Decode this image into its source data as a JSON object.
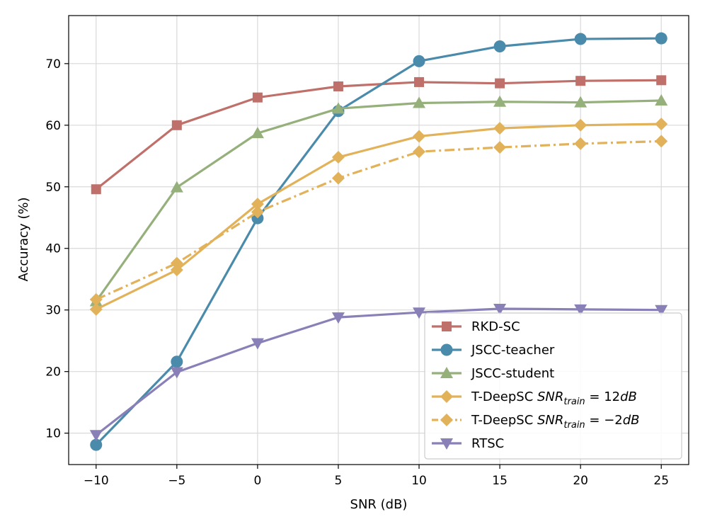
{
  "chart_data": {
    "type": "line",
    "title": "",
    "xlabel": "SNR (dB)",
    "ylabel": "Accuracy (%)",
    "x": [
      -10,
      -5,
      0,
      5,
      10,
      15,
      20,
      25
    ],
    "xlim": [
      -11.7,
      26.7
    ],
    "ylim": [
      4.9,
      77.8
    ],
    "xticks": [
      -10,
      -5,
      0,
      5,
      10,
      15,
      20,
      25
    ],
    "xtick_labels": [
      "−10",
      "−5",
      "0",
      "5",
      "10",
      "15",
      "20",
      "25"
    ],
    "yticks": [
      10,
      20,
      30,
      40,
      50,
      60,
      70
    ],
    "ytick_labels": [
      "10",
      "20",
      "30",
      "40",
      "50",
      "60",
      "70"
    ],
    "grid": true,
    "legend_position": "lower-right",
    "series": [
      {
        "id": "rkd-sc",
        "name": "RKD-SC",
        "color": "#c0706a",
        "marker": "square",
        "dash": "solid",
        "legend": {
          "pre": "RKD-SC"
        },
        "values": [
          49.6,
          60.0,
          64.5,
          66.3,
          67.0,
          66.8,
          67.2,
          67.3
        ]
      },
      {
        "id": "jscc-teacher",
        "name": "JSCC-teacher",
        "color": "#4a8aaa",
        "marker": "circle",
        "dash": "solid",
        "legend": {
          "pre": "JSCC-teacher"
        },
        "values": [
          8.1,
          21.6,
          44.9,
          62.3,
          70.4,
          72.8,
          74.0,
          74.1
        ]
      },
      {
        "id": "jscc-student",
        "name": "JSCC-student",
        "color": "#95b07a",
        "marker": "triangle-up",
        "dash": "solid",
        "legend": {
          "pre": "JSCC-student"
        },
        "values": [
          31.4,
          49.9,
          58.7,
          62.7,
          63.6,
          63.8,
          63.7,
          64.0
        ]
      },
      {
        "id": "t-deepsc-12",
        "name": "T-DeepSC SNRtrain = 12dB",
        "color": "#e2b25a",
        "marker": "diamond",
        "dash": "solid",
        "legend": {
          "pre": "T-DeepSC ",
          "math": "SNR",
          "sub": "train",
          "post": " = 12",
          "unit": "dB"
        },
        "values": [
          30.1,
          36.5,
          47.2,
          54.8,
          58.2,
          59.5,
          60.0,
          60.2
        ]
      },
      {
        "id": "t-deepsc-m2",
        "name": "T-DeepSC SNRtrain = −2dB",
        "color": "#e2b25a",
        "marker": "diamond",
        "dash": "dashdot",
        "legend": {
          "pre": "T-DeepSC ",
          "math": "SNR",
          "sub": "train",
          "post": " = −2",
          "unit": "dB"
        },
        "values": [
          31.7,
          37.6,
          45.9,
          51.4,
          55.7,
          56.4,
          57.0,
          57.4
        ]
      },
      {
        "id": "rtsc",
        "name": "RTSC",
        "color": "#8a80b8",
        "marker": "triangle-down",
        "dash": "solid",
        "legend": {
          "pre": "RTSC"
        },
        "values": [
          9.7,
          19.9,
          24.6,
          28.8,
          29.6,
          30.2,
          30.1,
          30.0
        ]
      }
    ]
  }
}
